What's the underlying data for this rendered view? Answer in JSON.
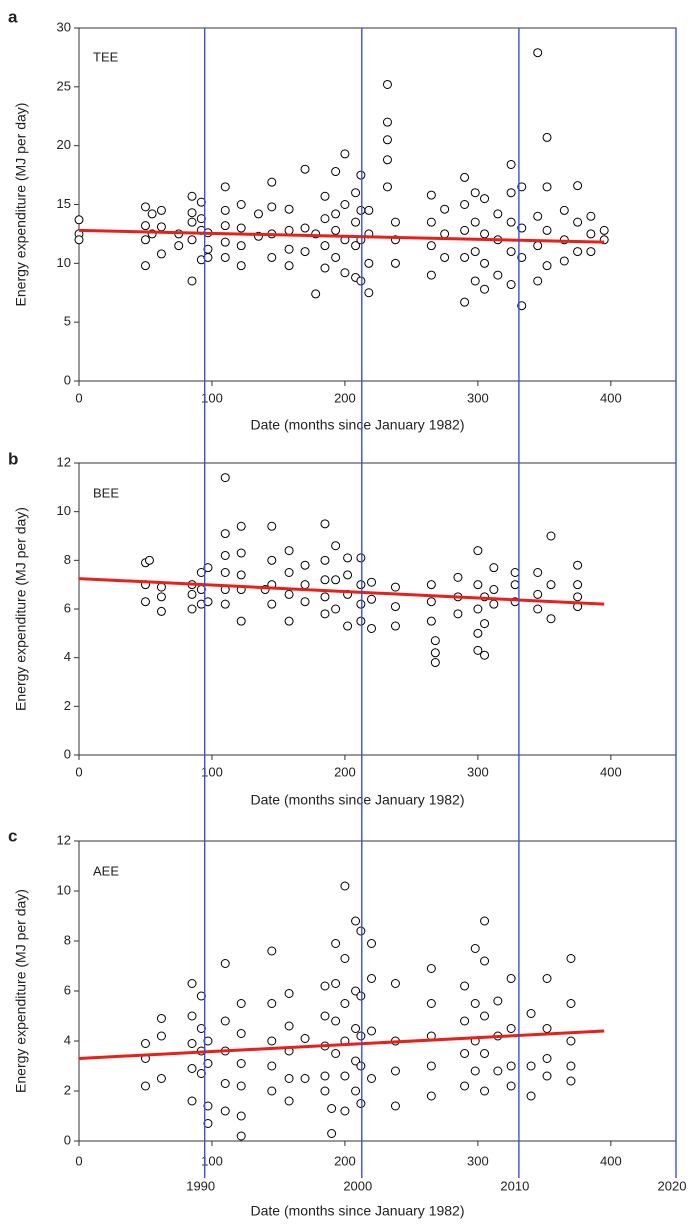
{
  "chart_data": [
    {
      "type": "scatter",
      "panel_label": "a",
      "annotation": "TEE",
      "xlabel": "Date (months since January 1982)",
      "ylabel": "Energy expenditure (MJ per day)",
      "xlim": [
        0,
        449
      ],
      "xticks": [
        0,
        100,
        200,
        300,
        400
      ],
      "ylim": [
        0,
        30
      ],
      "yticks": [
        0,
        5,
        10,
        15,
        20,
        25,
        30
      ],
      "marker_color": "#000000",
      "x": [
        0,
        0,
        0,
        50,
        50,
        50,
        50,
        55,
        55,
        62,
        62,
        62,
        75,
        75,
        85,
        85,
        85,
        85,
        85,
        92,
        92,
        92,
        92,
        97,
        97,
        97,
        110,
        110,
        110,
        110,
        110,
        122,
        122,
        122,
        122,
        135,
        135,
        145,
        145,
        145,
        145,
        158,
        158,
        158,
        158,
        170,
        170,
        170,
        178,
        178,
        185,
        185,
        185,
        185,
        193,
        193,
        193,
        193,
        200,
        200,
        200,
        200,
        208,
        208,
        208,
        208,
        212,
        212,
        212,
        212,
        218,
        218,
        218,
        218,
        232,
        232,
        232,
        232,
        232,
        238,
        238,
        238,
        265,
        265,
        265,
        265,
        275,
        275,
        275,
        290,
        290,
        290,
        290,
        290,
        298,
        298,
        298,
        298,
        305,
        305,
        305,
        305,
        315,
        315,
        315,
        325,
        325,
        325,
        325,
        325,
        333,
        333,
        333,
        333,
        345,
        345,
        345,
        345,
        352,
        352,
        352,
        352,
        365,
        365,
        365,
        375,
        375,
        375,
        385,
        385,
        385,
        395,
        395
      ],
      "values": [
        13.7,
        12.5,
        12.0,
        13.2,
        12.0,
        9.8,
        14.8,
        14.2,
        12.5,
        14.5,
        10.8,
        13.1,
        12.5,
        11.5,
        15.7,
        13.5,
        12.0,
        8.5,
        14.3,
        15.2,
        12.8,
        10.3,
        13.8,
        12.6,
        11.2,
        10.5,
        16.5,
        14.5,
        13.2,
        11.8,
        10.5,
        15.0,
        13.0,
        11.5,
        9.8,
        14.2,
        12.3,
        16.9,
        14.8,
        12.5,
        10.5,
        14.6,
        12.8,
        11.2,
        9.8,
        18.0,
        13.0,
        11.0,
        7.4,
        12.5,
        15.7,
        13.8,
        11.5,
        9.6,
        17.8,
        14.2,
        12.8,
        10.5,
        19.3,
        15.0,
        12.0,
        9.2,
        16.0,
        13.5,
        11.5,
        8.8,
        17.5,
        14.5,
        12.0,
        8.5,
        14.5,
        12.5,
        10.0,
        7.5,
        25.2,
        22.0,
        20.5,
        18.8,
        16.5,
        13.5,
        12.0,
        10.0,
        15.8,
        13.5,
        11.5,
        9.0,
        14.6,
        12.5,
        10.5,
        17.3,
        15.0,
        12.8,
        10.5,
        6.7,
        16.0,
        13.5,
        11.0,
        8.5,
        15.5,
        12.5,
        10.0,
        7.8,
        14.2,
        12.0,
        9.0,
        18.4,
        16.0,
        13.5,
        11.0,
        8.2,
        16.5,
        13.0,
        10.5,
        6.4,
        27.9,
        14.0,
        11.5,
        8.5,
        20.7,
        16.5,
        12.8,
        9.8,
        14.5,
        12.0,
        10.2,
        16.6,
        13.5,
        11.0,
        14.0,
        12.5,
        11.0,
        12.8,
        12.0
      ],
      "trend": {
        "x": [
          0,
          395
        ],
        "values": [
          12.8,
          11.8
        ],
        "color": "#e8201a"
      }
    },
    {
      "type": "scatter",
      "panel_label": "b",
      "annotation": "BEE",
      "xlabel": "Date (months since January 1982)",
      "ylabel": "Energy expenditure (MJ per day)",
      "xlim": [
        0,
        449
      ],
      "xticks": [
        0,
        100,
        200,
        300,
        400
      ],
      "ylim": [
        0,
        12
      ],
      "yticks": [
        0,
        2,
        4,
        6,
        8,
        10,
        12
      ],
      "marker_color": "#000000",
      "x": [
        50,
        50,
        50,
        53,
        62,
        62,
        62,
        85,
        85,
        85,
        92,
        92,
        92,
        97,
        97,
        110,
        110,
        110,
        110,
        110,
        110,
        122,
        122,
        122,
        122,
        122,
        140,
        145,
        145,
        145,
        145,
        158,
        158,
        158,
        158,
        170,
        170,
        170,
        185,
        185,
        185,
        185,
        185,
        193,
        193,
        193,
        202,
        202,
        202,
        202,
        212,
        212,
        212,
        212,
        220,
        220,
        220,
        238,
        238,
        238,
        265,
        265,
        265,
        268,
        268,
        268,
        285,
        285,
        285,
        300,
        300,
        300,
        300,
        300,
        305,
        305,
        305,
        312,
        312,
        312,
        328,
        328,
        328,
        345,
        345,
        345,
        355,
        355,
        355,
        375,
        375,
        375,
        375
      ],
      "values": [
        7.9,
        7.0,
        6.3,
        8.0,
        6.9,
        6.5,
        5.9,
        7.0,
        6.6,
        6.0,
        7.5,
        6.8,
        6.2,
        7.7,
        6.3,
        11.4,
        9.1,
        8.2,
        7.5,
        6.8,
        6.2,
        9.4,
        8.3,
        7.4,
        6.8,
        5.5,
        6.8,
        9.4,
        8.0,
        7.0,
        6.2,
        8.4,
        7.5,
        6.6,
        5.5,
        7.8,
        7.0,
        6.3,
        9.5,
        8.0,
        7.2,
        6.5,
        5.8,
        8.6,
        7.2,
        6.0,
        8.1,
        7.4,
        6.6,
        5.3,
        8.1,
        7.0,
        6.2,
        5.5,
        7.1,
        6.4,
        5.2,
        6.9,
        6.1,
        5.3,
        7.0,
        6.3,
        5.5,
        4.7,
        4.2,
        3.8,
        7.3,
        6.5,
        5.8,
        8.4,
        7.0,
        6.0,
        5.0,
        4.3,
        6.5,
        5.4,
        4.1,
        7.7,
        6.8,
        6.2,
        7.5,
        7.0,
        6.3,
        7.5,
        6.6,
        6.0,
        9.0,
        7.0,
        5.6,
        7.8,
        7.0,
        6.5,
        6.1
      ],
      "trend": {
        "x": [
          0,
          395
        ],
        "values": [
          7.25,
          6.2
        ],
        "color": "#e8201a"
      }
    },
    {
      "type": "scatter",
      "panel_label": "c",
      "annotation": "AEE",
      "xlabel": "Date (months since January 1982)",
      "ylabel": "Energy expenditure (MJ per day)",
      "xlim": [
        0,
        449
      ],
      "xticks": [
        0,
        100,
        200,
        300,
        400
      ],
      "ylim": [
        0,
        12
      ],
      "yticks": [
        0,
        2,
        4,
        6,
        8,
        10,
        12
      ],
      "x2lim": [
        1982,
        2020
      ],
      "x2ticks": [
        1990,
        2000,
        2010,
        2020
      ],
      "x2_line_color": "#3a4ee0",
      "marker_color": "#000000",
      "x": [
        50,
        50,
        50,
        62,
        62,
        62,
        85,
        85,
        85,
        85,
        85,
        92,
        92,
        92,
        92,
        97,
        97,
        97,
        97,
        110,
        110,
        110,
        110,
        110,
        122,
        122,
        122,
        122,
        122,
        122,
        145,
        145,
        145,
        145,
        145,
        158,
        158,
        158,
        158,
        158,
        170,
        170,
        185,
        185,
        185,
        185,
        185,
        190,
        190,
        193,
        193,
        193,
        193,
        200,
        200,
        200,
        200,
        200,
        200,
        208,
        208,
        208,
        208,
        208,
        212,
        212,
        212,
        212,
        212,
        220,
        220,
        220,
        220,
        238,
        238,
        238,
        238,
        265,
        265,
        265,
        265,
        265,
        290,
        290,
        290,
        290,
        298,
        298,
        298,
        298,
        305,
        305,
        305,
        305,
        305,
        315,
        315,
        315,
        325,
        325,
        325,
        325,
        340,
        340,
        340,
        352,
        352,
        352,
        352,
        370,
        370,
        370,
        370,
        370
      ],
      "values": [
        3.9,
        3.3,
        2.2,
        4.9,
        4.2,
        2.5,
        6.3,
        5.0,
        3.9,
        2.9,
        1.6,
        5.8,
        4.5,
        3.6,
        2.7,
        4.0,
        3.1,
        1.4,
        0.7,
        7.1,
        4.8,
        3.6,
        2.3,
        1.2,
        5.5,
        4.3,
        3.1,
        2.2,
        1.0,
        0.2,
        7.6,
        5.5,
        4.0,
        3.0,
        2.0,
        5.9,
        4.6,
        3.6,
        2.5,
        1.6,
        4.1,
        2.5,
        6.2,
        5.0,
        3.8,
        2.6,
        2.0,
        0.3,
        1.3,
        7.9,
        6.3,
        4.8,
        3.5,
        10.2,
        7.3,
        5.5,
        4.0,
        2.6,
        1.2,
        8.8,
        6.0,
        4.5,
        3.2,
        2.0,
        8.4,
        5.8,
        4.2,
        3.0,
        1.5,
        7.9,
        6.5,
        4.4,
        2.5,
        6.3,
        4.0,
        2.8,
        1.4,
        6.9,
        5.5,
        4.2,
        3.0,
        1.8,
        6.2,
        4.8,
        3.5,
        2.2,
        7.7,
        5.5,
        4.0,
        2.8,
        8.8,
        7.2,
        5.0,
        3.5,
        2.0,
        5.6,
        4.2,
        2.8,
        6.5,
        4.5,
        3.0,
        2.2,
        5.1,
        3.0,
        1.8,
        6.5,
        4.5,
        3.3,
        2.6,
        7.3,
        5.5,
        4.0,
        3.0,
        2.4
      ],
      "trend": {
        "x": [
          0,
          395
        ],
        "values": [
          3.3,
          4.4
        ],
        "color": "#e8201a"
      }
    }
  ]
}
